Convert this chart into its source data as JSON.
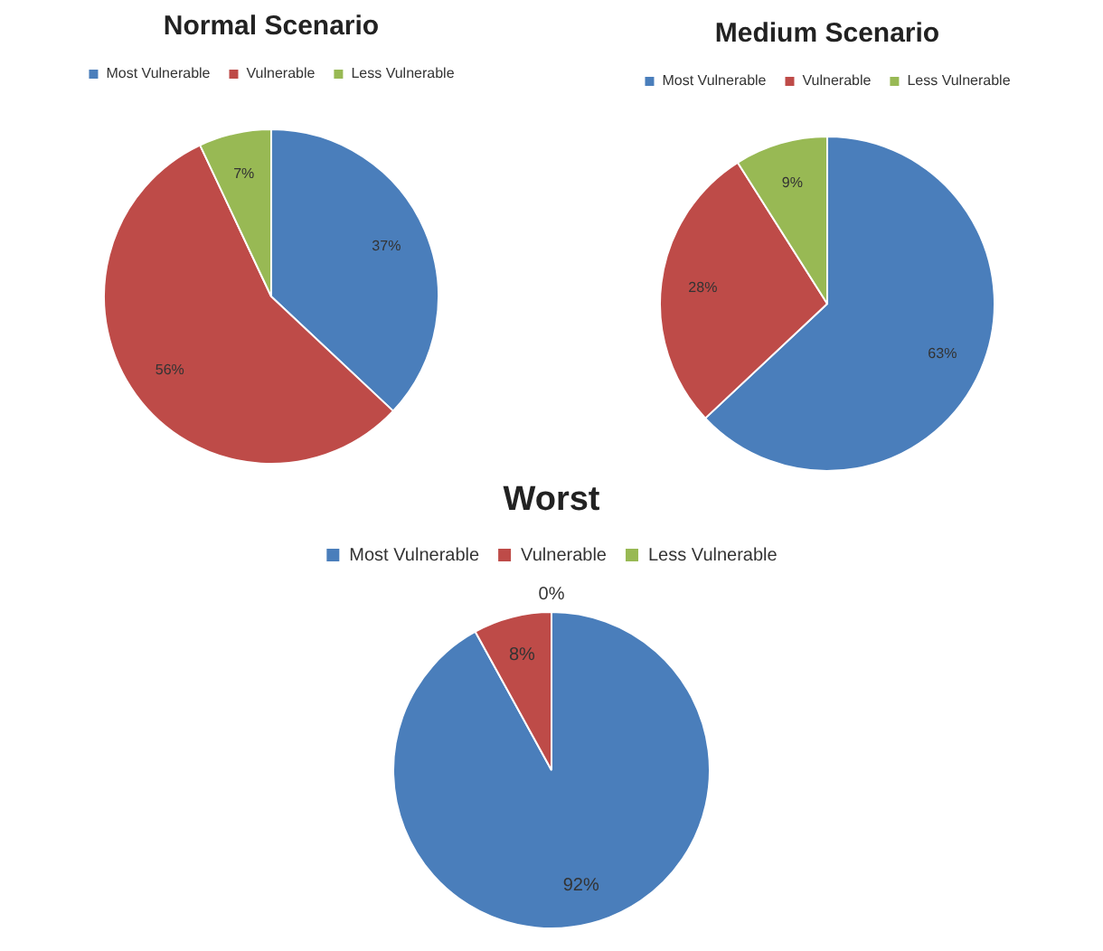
{
  "chart_data": [
    {
      "type": "pie",
      "title": "Normal Scenario",
      "categories": [
        "Most Vulnerable",
        "Vulnerable",
        "Less Vulnerable"
      ],
      "values": [
        37,
        56,
        7
      ],
      "colors": [
        "#4a7ebb",
        "#be4b48",
        "#98b954"
      ],
      "value_labels": [
        "37%",
        "56%",
        "7%"
      ],
      "legend": "top"
    },
    {
      "type": "pie",
      "title": "Medium Scenario",
      "categories": [
        "Most Vulnerable",
        "Vulnerable",
        "Less Vulnerable"
      ],
      "values": [
        63,
        28,
        9
      ],
      "colors": [
        "#4a7ebb",
        "#be4b48",
        "#98b954"
      ],
      "value_labels": [
        "63%",
        "28%",
        "9%"
      ],
      "legend": "top"
    },
    {
      "type": "pie",
      "title": "Worst",
      "categories": [
        "Most Vulnerable",
        "Vulnerable",
        "Less Vulnerable"
      ],
      "values": [
        92,
        8,
        0
      ],
      "colors": [
        "#4a7ebb",
        "#be4b48",
        "#98b954"
      ],
      "value_labels": [
        "92%",
        "8%",
        "0%"
      ],
      "legend": "top"
    }
  ]
}
